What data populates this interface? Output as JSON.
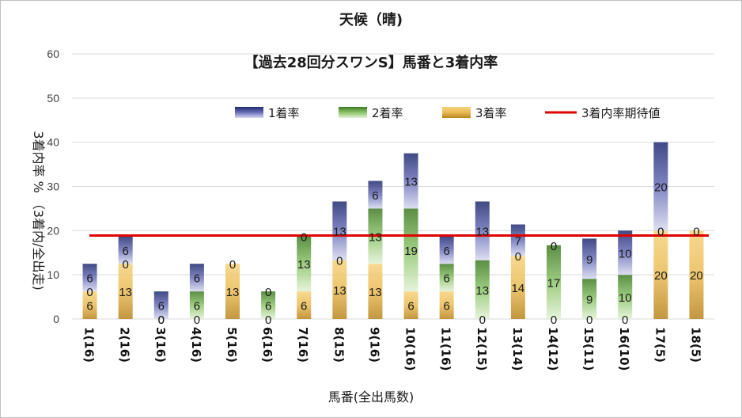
{
  "chart_data": {
    "type": "bar",
    "stacked": true,
    "title": "天候（晴)",
    "subtitle": "【過去28回分スワンS】馬番と3着内率",
    "xlabel": "馬番(全出馬数)",
    "ylabel": "3着内率 % （3着内/全出走)",
    "ylim": [
      0,
      60
    ],
    "yticks": [
      "0",
      "10",
      "20",
      "30",
      "40",
      "50",
      "60"
    ],
    "categories": [
      "1(16)",
      "2(16)",
      "3(16)",
      "4(16)",
      "5(16)",
      "6(16)",
      "7(16)",
      "8(15)",
      "9(16)",
      "10(16)",
      "11(16)",
      "12(15)",
      "13(14)",
      "14(12)",
      "15(11)",
      "16(10)",
      "17(5)",
      "18(5)"
    ],
    "series": [
      {
        "name": "3着率",
        "color": "#d8a84a",
        "values": [
          6.25,
          12.5,
          0,
          0,
          12.5,
          0,
          6.25,
          13.3,
          12.5,
          6.25,
          6.25,
          0,
          14.3,
          0,
          0,
          0,
          20,
          20
        ]
      },
      {
        "name": "2着率",
        "color": "#70ad47",
        "values": [
          0,
          0,
          0,
          6.25,
          0,
          6.25,
          12.5,
          0,
          12.5,
          18.75,
          6.25,
          13.3,
          0,
          16.7,
          9.1,
          10,
          0,
          0
        ]
      },
      {
        "name": "1着率",
        "color": "#5b5ea6",
        "values": [
          6.25,
          6.25,
          6.25,
          6.25,
          0,
          0,
          0,
          13.3,
          6.25,
          12.5,
          6.25,
          13.3,
          7.1,
          0,
          9.1,
          10,
          20,
          0
        ]
      }
    ],
    "data_labels": [
      [
        "6",
        "0",
        "6"
      ],
      [
        "13",
        "0",
        "6"
      ],
      [
        "0",
        "0",
        "6"
      ],
      [
        "0",
        "6",
        "6"
      ],
      [
        "13",
        "0",
        ""
      ],
      [
        "0",
        "6",
        "0"
      ],
      [
        "6",
        "13",
        "0"
      ],
      [
        "13",
        "0",
        "13"
      ],
      [
        "13",
        "13",
        "6"
      ],
      [
        "6",
        "19",
        "13"
      ],
      [
        "6",
        "6",
        "6"
      ],
      [
        "0",
        "13",
        "13"
      ],
      [
        "14",
        "0",
        "7"
      ],
      [
        "0",
        "17",
        "0"
      ],
      [
        "0",
        "9",
        "9"
      ],
      [
        "0",
        "10",
        "10"
      ],
      [
        "20",
        "0",
        "20"
      ],
      [
        "20",
        "",
        "0"
      ]
    ],
    "reference_line": {
      "name": "3着内率期待値",
      "value": 18.9,
      "color": "#e00000"
    },
    "legend": [
      "1着率",
      "2着率",
      "3着率",
      "3着内率期待値"
    ],
    "legend_position": "top-right",
    "grid": true
  }
}
